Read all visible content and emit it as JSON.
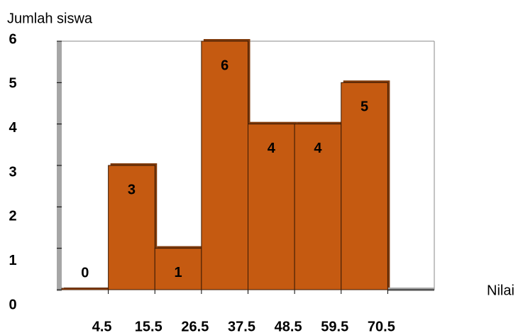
{
  "chart_data": {
    "type": "histogram",
    "y_label": "Jumlah siswa",
    "x_label": "Nilai",
    "bins": [
      -6.5,
      4.5,
      15.5,
      26.5,
      37.5,
      48.5,
      59.5,
      70.5
    ],
    "counts": [
      0,
      3,
      1,
      6,
      4,
      4,
      5
    ],
    "color": "#c55a11",
    "xlim": [
      -6.5,
      81.5
    ],
    "xticks": [
      4.5,
      15.5,
      26.5,
      37.5,
      48.5,
      59.5,
      70.5
    ],
    "ylim": [
      0,
      6
    ],
    "yticks": [
      0,
      1,
      2,
      3,
      4,
      5,
      6
    ]
  }
}
